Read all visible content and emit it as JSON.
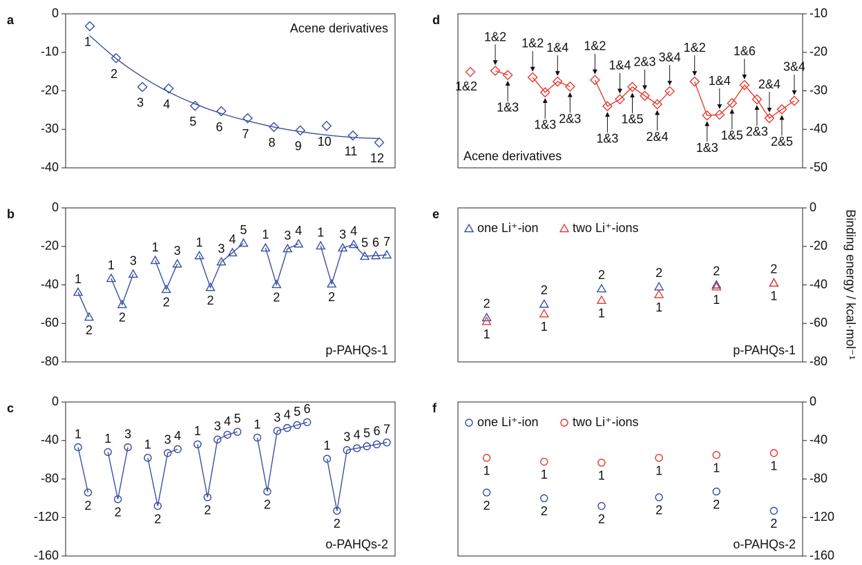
{
  "chart_data": [
    {
      "type": "scatter",
      "panel": "a",
      "annotation": "Acene derivatives",
      "annotation_corner": "upper right",
      "marker": "diamond",
      "color": "#3a4ea3",
      "categories": [
        "1",
        "2",
        "3",
        "4",
        "5",
        "6",
        "7",
        "8",
        "9",
        "10",
        "11",
        "12"
      ],
      "values": [
        -3.2,
        -11.5,
        -19.0,
        -19.4,
        -23.9,
        -25.3,
        -27.1,
        -29.4,
        -30.3,
        -29.1,
        -31.6,
        -33.4
      ],
      "fit": [
        -5.7,
        -11.6,
        -16.4,
        -20.3,
        -23.4,
        -25.9,
        -27.8,
        -29.4,
        -30.6,
        -31.5,
        -32.1,
        -32.4
      ],
      "ylim": [
        -40,
        0
      ],
      "yticks": [
        0,
        -10,
        -20,
        -30,
        -40
      ],
      "axis_side": "left"
    },
    {
      "type": "line",
      "panel": "b",
      "annotation": "p-PAHQs-1",
      "annotation_corner": "lower right",
      "marker": "triangle",
      "color": "#3a4ea3",
      "groups": [
        {
          "labels": [
            "1",
            "2"
          ],
          "values": [
            -43.8,
            -56.7
          ]
        },
        {
          "labels": [
            "1",
            "2",
            "3"
          ],
          "values": [
            -36.6,
            -50.2,
            -34.4
          ]
        },
        {
          "labels": [
            "1",
            "2",
            "3"
          ],
          "values": [
            -27.3,
            -42.3,
            -29.1
          ]
        },
        {
          "labels": [
            "1",
            "2",
            "3",
            "4",
            "5"
          ],
          "values": [
            -24.8,
            -41.3,
            -28.0,
            -23.3,
            -18.3
          ]
        },
        {
          "labels": [
            "1",
            "2",
            "3",
            "4"
          ],
          "values": [
            -20.8,
            -39.8,
            -21.2,
            -18.7
          ]
        },
        {
          "labels": [
            "1",
            "2",
            "3",
            "4",
            "5",
            "6",
            "7"
          ],
          "values": [
            -19.7,
            -39.5,
            -20.8,
            -19.0,
            -25.1,
            -24.8,
            -24.4
          ]
        }
      ],
      "ylim": [
        -80,
        0
      ],
      "yticks": [
        0,
        -20,
        -40,
        -60,
        -80
      ],
      "axis_side": "left"
    },
    {
      "type": "line",
      "panel": "c",
      "annotation": "o-PAHQs-2",
      "annotation_corner": "lower right",
      "marker": "circle",
      "color": "#3a4ea3",
      "groups": [
        {
          "labels": [
            "1",
            "2"
          ],
          "values": [
            -47,
            -94
          ]
        },
        {
          "labels": [
            "1",
            "2",
            "3"
          ],
          "values": [
            -52,
            -101,
            -47
          ]
        },
        {
          "labels": [
            "1",
            "2",
            "3",
            "4"
          ],
          "values": [
            -58,
            -108,
            -53,
            -49
          ]
        },
        {
          "labels": [
            "1",
            "2",
            "3",
            "4",
            "5"
          ],
          "values": [
            -44,
            -99,
            -39,
            -34,
            -31
          ]
        },
        {
          "labels": [
            "1",
            "2",
            "3",
            "4",
            "5",
            "6"
          ],
          "values": [
            -37,
            -93,
            -30,
            -27,
            -24,
            -21
          ]
        },
        {
          "labels": [
            "1",
            "2",
            "3",
            "4",
            "5",
            "6",
            "7"
          ],
          "values": [
            -59,
            -113,
            -50,
            -48,
            -46,
            -44,
            -42
          ]
        }
      ],
      "ylim": [
        -160,
        0
      ],
      "yticks": [
        0,
        -40,
        -80,
        -120,
        -160
      ],
      "axis_side": "left"
    },
    {
      "type": "line",
      "panel": "d",
      "annotation": "Acene derivatives",
      "annotation_corner": "lower left",
      "marker": "diamond",
      "color": "#e33b2e",
      "label_style": "callout",
      "groups": [
        {
          "labels": [
            "1&2"
          ],
          "values": [
            -25.1
          ]
        },
        {
          "labels": [
            "1&2",
            "1&3"
          ],
          "values": [
            -24.8,
            -25.9
          ]
        },
        {
          "labels": [
            "1&2",
            "1&3",
            "1&4",
            "2&3"
          ],
          "values": [
            -26.5,
            -30.4,
            -27.6,
            -28.9
          ]
        },
        {
          "labels": [
            "1&2",
            "1&3",
            "1&4",
            "1&5",
            "2&3",
            "2&4",
            "3&4"
          ],
          "values": [
            -27.2,
            -34.0,
            -32.2,
            -29.0,
            -31.3,
            -33.5,
            -30.1
          ]
        },
        {
          "labels": [
            "1&2",
            "1&3",
            "1&4",
            "1&5",
            "1&6",
            "2&3",
            "2&4",
            "2&5",
            "3&4"
          ],
          "values": [
            -27.6,
            -36.4,
            -36.2,
            -33.2,
            -28.5,
            -32.2,
            -37.1,
            -34.8,
            -32.6
          ]
        }
      ],
      "ylim": [
        -50,
        -10
      ],
      "yticks": [
        -10,
        -20,
        -30,
        -40,
        -50
      ],
      "axis_side": "right"
    },
    {
      "type": "scatter",
      "panel": "e",
      "annotation": "p-PAHQs-1",
      "annotation_corner": "lower right",
      "marker": "triangle",
      "legend": "upper left",
      "ylabel": "Binding energy / kcal·mol⁻¹",
      "series": [
        {
          "name": "one Li⁺-ion",
          "color": "#3a4ea3",
          "values": [
            -57,
            -50,
            -42,
            -41,
            -40,
            -39
          ],
          "point_labels": [
            "2",
            "2",
            "2",
            "2",
            "2",
            "2"
          ],
          "label_side": "above"
        },
        {
          "name": "two Li⁺-ions",
          "color": "#e33b2e",
          "values": [
            -59,
            -55,
            -48,
            -45,
            -41,
            -39
          ],
          "point_labels": [
            "1",
            "1",
            "1",
            "1",
            "1",
            "1"
          ],
          "label_side": "below"
        }
      ],
      "ylim": [
        -80,
        0
      ],
      "yticks": [
        0,
        -20,
        -40,
        -60,
        -80
      ],
      "axis_side": "right"
    },
    {
      "type": "scatter",
      "panel": "f",
      "annotation": "o-PAHQs-2",
      "annotation_corner": "lower right",
      "marker": "circle",
      "legend": "upper left",
      "series": [
        {
          "name": "one Li⁺-ion",
          "color": "#3a4ea3",
          "values": [
            -94,
            -100,
            -108,
            -99,
            -93,
            -113
          ],
          "point_labels": [
            "2",
            "2",
            "2",
            "2",
            "2",
            "2"
          ],
          "label_side": "below"
        },
        {
          "name": "two Li⁺-ions",
          "color": "#e33b2e",
          "values": [
            -58,
            -62,
            -63,
            -58,
            -55,
            -53
          ],
          "point_labels": [
            "1",
            "1",
            "1",
            "1",
            "1",
            "1"
          ],
          "label_side": "below"
        }
      ],
      "ylim": [
        -160,
        0
      ],
      "yticks": [
        0,
        -40,
        -80,
        -120,
        -160
      ],
      "axis_side": "right"
    }
  ]
}
